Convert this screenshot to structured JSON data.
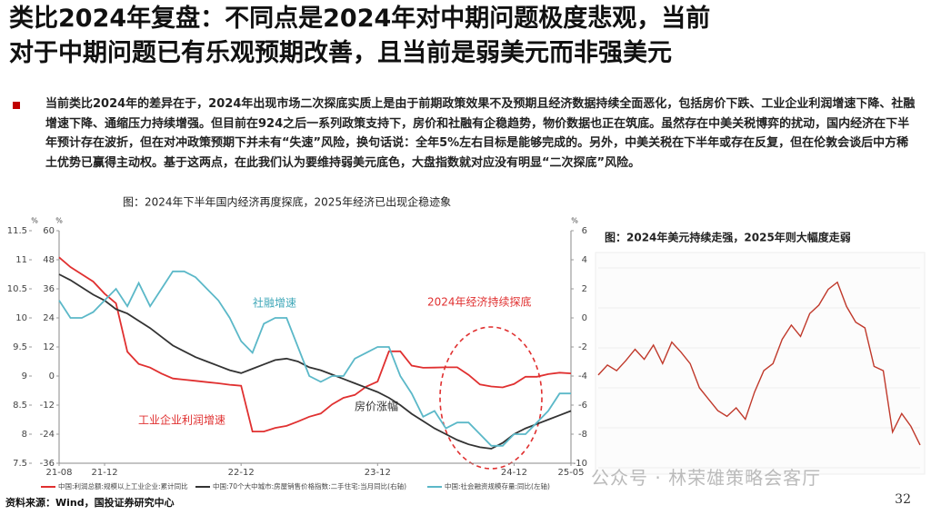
{
  "header": {
    "title": [
      "类比2024年复盘：不同点是2024年对中期问题极度悲观，当前",
      "对于中期问题已有乐观预期改善，且当前是弱美元而非强美元"
    ]
  },
  "body": {
    "paragraph": "当前类比2024年的差异在于，2024年出现市场二次探底实质上是由于前期政策效果不及预期且经济数据持续全面恶化，包括房价下跌、工业企业利润增速下降、社融增速下降、通缩压力持续增强。但目前在924之后一系列政策支持下，房价和社融有企稳趋势，物价数据也正在筑底。虽然存在中美关税博弈的扰动，国内经济在下半年预计存在波折，但在对冲政策预期下并未有“失速”风险，换句话说：全年5%左右目标是能够完成的。另外，中美关税在下半年或存在反复，但在伦敦会谈后中方稀土优势已赢得主动权。基于这两点，在此我们认为要维持弱美元底色，大盘指数就对应没有明显“二次探底”风险。"
  },
  "chart_data": [
    {
      "type": "line",
      "title": "图：2024年下半年国内经济再度探底，2025年经济已出现企稳迹象",
      "categories": [
        "21-08",
        null,
        null,
        null,
        "21-12",
        null,
        null,
        null,
        null,
        null,
        null,
        null,
        null,
        null,
        null,
        null,
        "22-12",
        null,
        null,
        null,
        null,
        null,
        null,
        null,
        null,
        null,
        null,
        null,
        "23-12",
        null,
        null,
        null,
        null,
        null,
        null,
        null,
        null,
        null,
        null,
        null,
        "24-12",
        null,
        null,
        null,
        null,
        "25-05"
      ],
      "series": [
        {
          "name": "中国:利润总额:规模以上工业企业:累计同比",
          "color": "#e03030",
          "axis": "y",
          "values": [
            49,
            45,
            42,
            39,
            34,
            30,
            10,
            5,
            3.5,
            1,
            -1,
            -1.5,
            -2,
            -2.5,
            -3,
            -3.6,
            -4,
            -22.9,
            -22.9,
            -21.4,
            -20.6,
            -18.8,
            -16.8,
            -15.5,
            -11.7,
            -9,
            -7.8,
            -4.4,
            -2.3,
            10.2,
            10.2,
            4.3,
            3.4,
            3.5,
            3.6,
            3.6,
            0.5,
            -3.5,
            -4.3,
            -4.7,
            -3.3,
            -0.3,
            -0.3,
            0.8,
            1.4,
            1.1
          ]
        },
        {
          "name": "中国:70个大中城市:房屋销售价格指数:二手住宅:当月同比(右轴)",
          "color": "#333333",
          "axis": "y2",
          "values": [
            3.0,
            2.6,
            2.1,
            1.6,
            1.2,
            0.6,
            0.3,
            -0.2,
            -0.7,
            -1.3,
            -1.9,
            -2.3,
            -2.7,
            -3.0,
            -3.3,
            -3.6,
            -3.8,
            -3.5,
            -3.2,
            -2.9,
            -2.8,
            -3.0,
            -3.4,
            -3.6,
            -3.9,
            -4.2,
            -4.5,
            -4.8,
            -5.1,
            -5.5,
            -6.0,
            -6.6,
            -7.1,
            -7.6,
            -8.0,
            -8.4,
            -8.7,
            -8.9,
            -9.0,
            -8.6,
            -8.0,
            -7.6,
            -7.3,
            -7.0,
            -6.7,
            -6.4
          ]
        },
        {
          "name": "中国:社会融资规模存量:同比(左轴)",
          "color": "#5bb8c8",
          "axis": "y3",
          "values": [
            10.3,
            10.0,
            10.0,
            10.1,
            10.3,
            10.5,
            10.2,
            10.6,
            10.2,
            10.5,
            10.8,
            10.8,
            10.7,
            10.5,
            10.3,
            10.0,
            9.6,
            9.4,
            9.9,
            10.0,
            10.0,
            9.5,
            9.0,
            8.9,
            9.0,
            9.0,
            9.3,
            9.4,
            9.5,
            9.5,
            9.0,
            8.7,
            8.3,
            8.4,
            8.1,
            8.2,
            8.2,
            8.0,
            7.8,
            7.8,
            8.0,
            8.0,
            8.2,
            8.4,
            8.7,
            8.7
          ]
        }
      ],
      "ylim": [
        -36,
        60
      ],
      "yticks": [
        -36,
        -24,
        -12,
        0,
        12,
        24,
        36,
        48,
        60
      ],
      "y2lim": [
        -10,
        6
      ],
      "y2ticks": [
        -10,
        -8,
        -6,
        -4,
        -2,
        0,
        2,
        4,
        6
      ],
      "y3lim": [
        7.5,
        11.5
      ],
      "y3ticks": [
        7.5,
        8,
        8.5,
        9,
        9.5,
        10,
        10.5,
        11,
        11.5
      ],
      "units": [
        "%",
        "%",
        "%"
      ],
      "annotations": [
        "社融增速",
        "2024年经济持续探底",
        "工业企业利润增速",
        "房价涨幅"
      ]
    },
    {
      "type": "line",
      "title": "图：2024年美元持续走强，2025年则大幅度走弱",
      "color": "#c0392b",
      "ylim": [
        97,
        111
      ],
      "values": [
        103.5,
        104.2,
        103.8,
        104.5,
        105.3,
        104.6,
        105.6,
        104.3,
        105.8,
        105.1,
        104.3,
        102.6,
        101.8,
        101.0,
        100.6,
        101.2,
        100.4,
        102.3,
        103.8,
        104.3,
        106.0,
        107.0,
        106.2,
        107.8,
        108.4,
        109.5,
        110.0,
        108.3,
        107.2,
        106.8,
        104.1,
        103.8,
        99.5,
        100.8,
        99.9,
        98.6
      ]
    }
  ],
  "footer": {
    "source": "资料来源：Wind，国投证券研究中心",
    "page": "32",
    "watermark": "公众号 · 林荣雄策略会客厅"
  }
}
